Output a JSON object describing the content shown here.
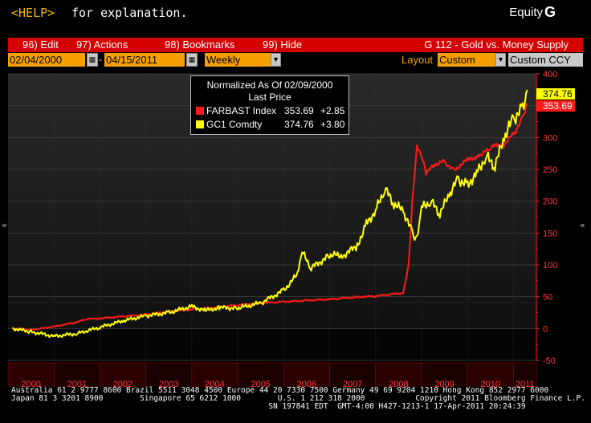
{
  "topbar": {
    "help_key": "<HELP>",
    "help_text": "for explanation.",
    "equity": "Equity",
    "equity_g": "G"
  },
  "menu": {
    "edit": "96) Edit",
    "actions": "97) Actions",
    "bookmarks": "98) Bookmarks",
    "hide": "99) Hide",
    "title": "G 112 - Gold vs. Money Supply"
  },
  "toolbar": {
    "start_date": "02/04/2000",
    "end_date": "04/15/2011",
    "period": "Weekly",
    "layout_label": "Layout",
    "layout_value": "Custom",
    "currency": "Custom CCY"
  },
  "legend": {
    "title": "Normalized As Of 02/09/2000",
    "subtitle": "Last Price",
    "series": [
      {
        "name": "FARBAST Index",
        "last": "353.69",
        "change": "+2.85",
        "color": "#ff1a1a"
      },
      {
        "name": "GC1 Comdty",
        "last": "374.76",
        "change": "+3.80",
        "color": "#ffff00"
      }
    ]
  },
  "chart_data": {
    "type": "line",
    "x_labels": [
      "2000",
      "2001",
      "2002",
      "2003",
      "2004",
      "2005",
      "2006",
      "2007",
      "2008",
      "2009",
      "2010",
      "2011"
    ],
    "ylim": [
      -50,
      400
    ],
    "yticks": [
      400,
      350,
      300,
      250,
      200,
      150,
      100,
      50,
      0,
      -50
    ],
    "last_labels": [
      "374.76",
      "353.69"
    ],
    "series": [
      {
        "name": "FARBAST Index",
        "color": "#ff1a1a",
        "points": [
          [
            2000.1,
            0
          ],
          [
            2000.5,
            -2
          ],
          [
            2001.0,
            3
          ],
          [
            2001.5,
            10
          ],
          [
            2001.7,
            15
          ],
          [
            2002.0,
            16
          ],
          [
            2002.5,
            19
          ],
          [
            2003.0,
            22
          ],
          [
            2003.5,
            27
          ],
          [
            2004.0,
            30
          ],
          [
            2004.5,
            33
          ],
          [
            2005.0,
            37
          ],
          [
            2005.5,
            40
          ],
          [
            2006.0,
            42
          ],
          [
            2006.5,
            44
          ],
          [
            2007.0,
            46
          ],
          [
            2007.5,
            49
          ],
          [
            2008.0,
            51
          ],
          [
            2008.6,
            56
          ],
          [
            2008.72,
            100
          ],
          [
            2008.8,
            200
          ],
          [
            2008.9,
            285
          ],
          [
            2009.0,
            270
          ],
          [
            2009.1,
            245
          ],
          [
            2009.3,
            258
          ],
          [
            2009.5,
            262
          ],
          [
            2009.7,
            248
          ],
          [
            2010.0,
            265
          ],
          [
            2010.3,
            272
          ],
          [
            2010.5,
            285
          ],
          [
            2010.8,
            290
          ],
          [
            2011.0,
            305
          ],
          [
            2011.2,
            330
          ],
          [
            2011.3,
            353.69
          ]
        ]
      },
      {
        "name": "GC1 Comdty",
        "color": "#ffff00",
        "points": [
          [
            2000.1,
            0
          ],
          [
            2000.5,
            -5
          ],
          [
            2001.0,
            -12
          ],
          [
            2001.5,
            -8
          ],
          [
            2002.0,
            2
          ],
          [
            2002.5,
            12
          ],
          [
            2003.0,
            20
          ],
          [
            2003.5,
            25
          ],
          [
            2004.0,
            35
          ],
          [
            2004.3,
            28
          ],
          [
            2004.6,
            33
          ],
          [
            2005.0,
            32
          ],
          [
            2005.5,
            40
          ],
          [
            2006.0,
            60
          ],
          [
            2006.3,
            85
          ],
          [
            2006.4,
            120
          ],
          [
            2006.6,
            95
          ],
          [
            2007.0,
            115
          ],
          [
            2007.3,
            115
          ],
          [
            2007.6,
            130
          ],
          [
            2007.8,
            165
          ],
          [
            2008.0,
            185
          ],
          [
            2008.2,
            220
          ],
          [
            2008.4,
            195
          ],
          [
            2008.6,
            185
          ],
          [
            2008.8,
            150
          ],
          [
            2008.9,
            140
          ],
          [
            2009.0,
            190
          ],
          [
            2009.2,
            200
          ],
          [
            2009.4,
            180
          ],
          [
            2009.6,
            210
          ],
          [
            2009.8,
            235
          ],
          [
            2010.0,
            225
          ],
          [
            2010.2,
            245
          ],
          [
            2010.4,
            270
          ],
          [
            2010.6,
            255
          ],
          [
            2010.8,
            300
          ],
          [
            2011.0,
            330
          ],
          [
            2011.2,
            345
          ],
          [
            2011.3,
            374.76
          ]
        ]
      }
    ],
    "grid": true
  },
  "footer": {
    "line1": "Australia 61 2 9777 8600 Brazil 5511 3048 4500 Europe 44 20 7330 7500 Germany 49 69 9204 1210 Hong Kong 852 2977 6000",
    "line2": "Japan 81 3 3201 8900        Singapore 65 6212 1000        U.S. 1 212 318 2000           Copyright 2011 Bloomberg Finance L.P.",
    "line3": "                                                        SN 197841 EDT  GMT-4:00 H427-1213-1 17-Apr-2011 20:24:39"
  }
}
